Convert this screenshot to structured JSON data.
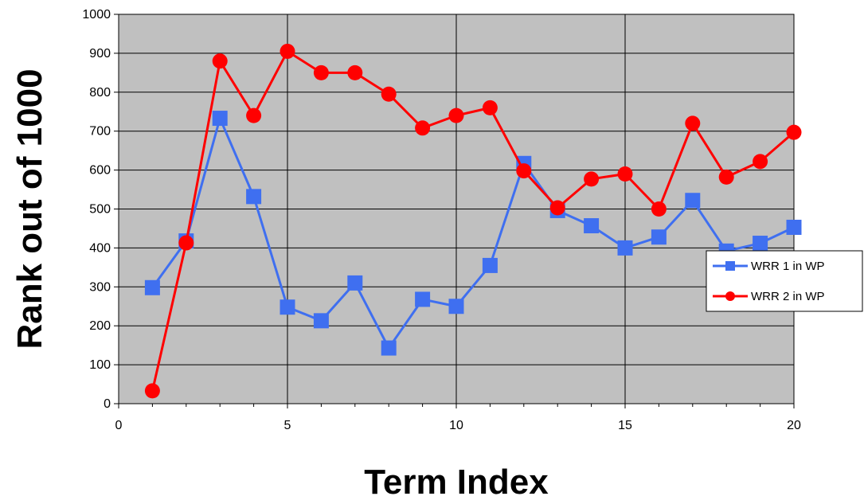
{
  "chart_data": {
    "type": "line",
    "title": "",
    "xlabel": "Term Index",
    "ylabel": "Rank out of 1000",
    "xlim": [
      0,
      20
    ],
    "ylim": [
      0,
      1000
    ],
    "x_ticks": [
      0,
      5,
      10,
      15,
      20
    ],
    "y_ticks": [
      0,
      100,
      200,
      300,
      400,
      500,
      600,
      700,
      800,
      900,
      1000
    ],
    "grid": true,
    "plot_background": "#c0c0c0",
    "legend_position": "right",
    "x": [
      1,
      2,
      3,
      4,
      5,
      6,
      7,
      8,
      9,
      10,
      11,
      12,
      13,
      14,
      15,
      16,
      17,
      18,
      19,
      20
    ],
    "series": [
      {
        "name": "WRR 1 in WP",
        "color": "#3f6ff0",
        "marker": "square",
        "values": [
          298,
          418,
          733,
          532,
          248,
          213,
          310,
          143,
          268,
          250,
          355,
          617,
          496,
          457,
          400,
          428,
          522,
          392,
          412,
          453
        ]
      },
      {
        "name": "WRR 2 in WP",
        "color": "#ff0000",
        "marker": "circle",
        "values": [
          33,
          413,
          880,
          740,
          905,
          850,
          850,
          795,
          708,
          740,
          760,
          598,
          503,
          577,
          590,
          500,
          720,
          582,
          622,
          697
        ]
      }
    ]
  }
}
